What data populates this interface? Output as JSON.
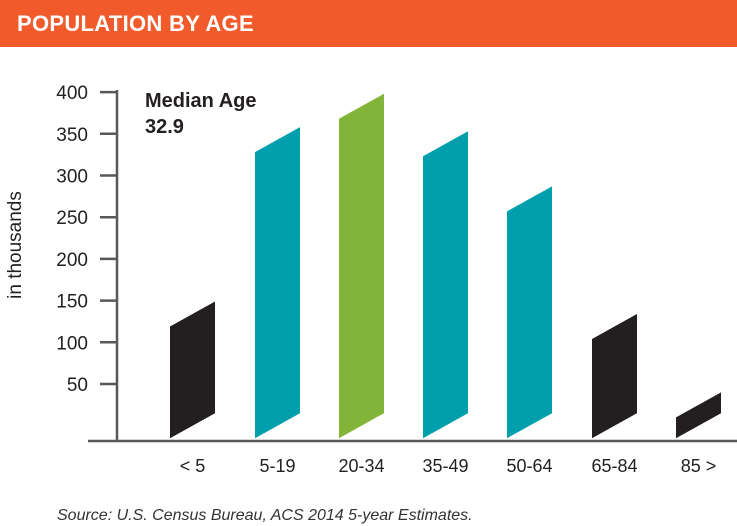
{
  "header": {
    "title": "POPULATION BY AGE"
  },
  "annotation": {
    "label": "Median Age",
    "value": "32.9"
  },
  "source": "Source: U.S. Census Bureau, ACS 2014 5-year Estimates.",
  "chart_data": {
    "type": "bar",
    "title": "POPULATION BY AGE",
    "ylabel": "in thousands",
    "xlabel": "",
    "ylim": [
      0,
      400
    ],
    "yticks": [
      50,
      100,
      150,
      200,
      250,
      300,
      350,
      400
    ],
    "categories": [
      "< 5",
      "5-19",
      "20-34",
      "35-49",
      "50-64",
      "65-84",
      "85 >"
    ],
    "values": [
      134,
      343,
      383,
      338,
      272,
      119,
      25
    ],
    "colors": [
      "#231f20",
      "#009fad",
      "#82b43a",
      "#009fad",
      "#009fad",
      "#231f20",
      "#231f20"
    ],
    "grid": false
  }
}
